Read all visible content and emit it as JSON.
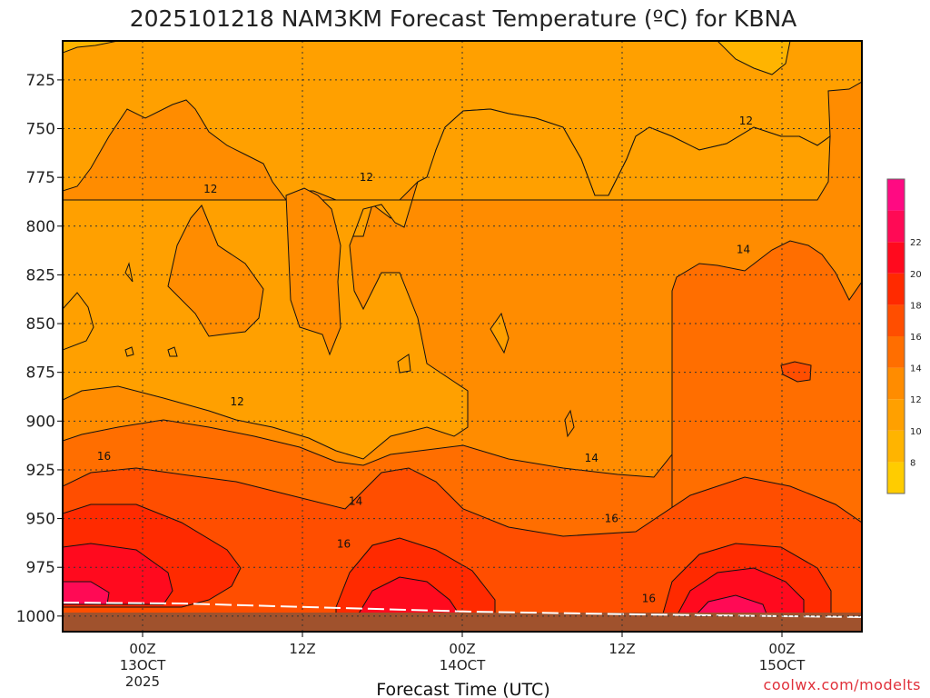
{
  "chart_data": {
    "type": "heatmap",
    "title": "2025101218 NAM3KM Forecast Temperature (ºC) for KBNA",
    "xlabel": "Forecast Time (UTC)",
    "ylabel": "",
    "y_scale": "pressure (reversed)",
    "ylim": [
      1008,
      705
    ],
    "y_ticks": [
      725,
      750,
      775,
      800,
      825,
      850,
      875,
      900,
      925,
      950,
      975,
      1000
    ],
    "x_ticks": [
      {
        "line1": "00Z",
        "line2": "13OCT",
        "line3": "2025",
        "hour": 6
      },
      {
        "line1": "12Z",
        "line2": "",
        "line3": "",
        "hour": 18
      },
      {
        "line1": "00Z",
        "line2": "14OCT",
        "line3": "",
        "hour": 30
      },
      {
        "line1": "12Z",
        "line2": "",
        "line3": "",
        "hour": 42
      },
      {
        "line1": "00Z",
        "line2": "15OCT",
        "line3": "",
        "hour": 54
      }
    ],
    "xlim": [
      0,
      60
    ],
    "grid": true,
    "colorbar": {
      "levels": [
        6,
        8,
        10,
        12,
        14,
        16,
        18,
        20,
        22,
        24
      ],
      "labels": [
        "8",
        "10",
        "12",
        "14",
        "16",
        "18",
        "20",
        "22"
      ],
      "colors": [
        "#ffcc00",
        "#ffb400",
        "#ffa000",
        "#ff8c00",
        "#ff6e00",
        "#ff4e00",
        "#ff2a00",
        "#ff0a1e",
        "#ff0a55",
        "#ff0a82"
      ]
    },
    "contour_labels": [
      {
        "text": "12",
        "hour": 11.1,
        "p": 781
      },
      {
        "text": "12",
        "hour": 22.8,
        "p": 775
      },
      {
        "text": "12",
        "hour": 51.3,
        "p": 746
      },
      {
        "text": "12",
        "hour": 13.1,
        "p": 890
      },
      {
        "text": "14",
        "hour": 51.1,
        "p": 812
      },
      {
        "text": "14",
        "hour": 39.7,
        "p": 919
      },
      {
        "text": "14",
        "hour": 22.0,
        "p": 941
      },
      {
        "text": "16",
        "hour": 3.1,
        "p": 918
      },
      {
        "text": "16",
        "hour": 21.1,
        "p": 963
      },
      {
        "text": "16",
        "hour": 41.2,
        "p": 950
      },
      {
        "text": "16",
        "hour": 44.0,
        "p": 991
      }
    ],
    "field_summary": {
      "upper_levels_725_775": "10-12",
      "mid_levels_800_900": "12-14",
      "low_levels_925_950": "14-18",
      "near_surface_maxima": [
        {
          "hour": 1.5,
          "p": 990,
          "value": "22+"
        },
        {
          "hour": 25.0,
          "p": 992,
          "value": "20-22"
        },
        {
          "hour": 50.5,
          "p": 993,
          "value": "22+"
        }
      ]
    }
  },
  "credit": "coolwx.com/modelts",
  "colors": {
    "ground": "#a0522d",
    "frame": "#000000",
    "credit": "#e0303a"
  }
}
